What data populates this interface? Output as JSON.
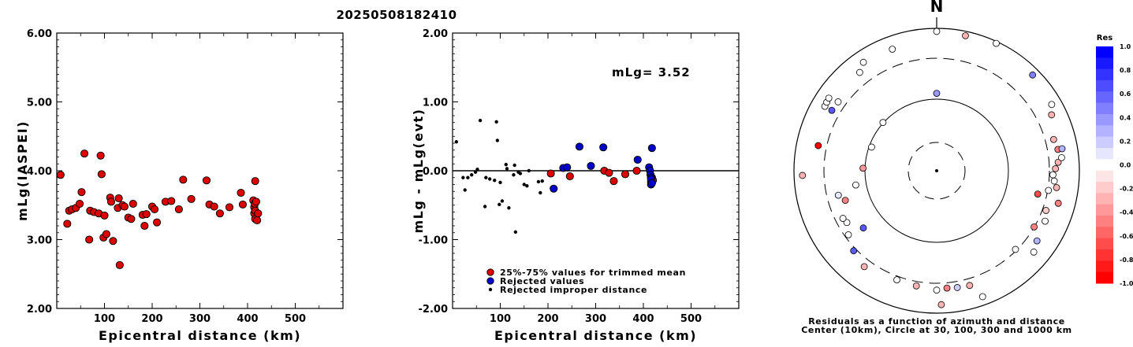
{
  "title": "20250508182410",
  "chart_data": [
    {
      "type": "scatter",
      "ylabel": "mLg(IASPEI)",
      "xlabel": "Epicentral distance (km)",
      "xlim": [
        0,
        600
      ],
      "ylim": [
        2.0,
        6.0
      ],
      "xticks": [
        "100",
        "200",
        "300",
        "400",
        "500"
      ],
      "yticks": [
        "2.00",
        "3.00",
        "4.00",
        "5.00",
        "6.00"
      ],
      "series": [
        {
          "color": "#dd0000",
          "points": [
            [
              8,
              3.94
            ],
            [
              22,
              3.23
            ],
            [
              26,
              3.42
            ],
            [
              32,
              3.44
            ],
            [
              40,
              3.46
            ],
            [
              48,
              3.52
            ],
            [
              52,
              3.69
            ],
            [
              58,
              4.25
            ],
            [
              68,
              3.0
            ],
            [
              70,
              3.42
            ],
            [
              78,
              3.4
            ],
            [
              88,
              3.38
            ],
            [
              92,
              4.22
            ],
            [
              94,
              3.95
            ],
            [
              98,
              3.03
            ],
            [
              100,
              3.35
            ],
            [
              104,
              3.08
            ],
            [
              112,
              3.61
            ],
            [
              114,
              3.55
            ],
            [
              118,
              2.98
            ],
            [
              128,
              3.46
            ],
            [
              130,
              3.6
            ],
            [
              132,
              2.63
            ],
            [
              138,
              3.5
            ],
            [
              142,
              3.48
            ],
            [
              150,
              3.32
            ],
            [
              156,
              3.3
            ],
            [
              160,
              3.52
            ],
            [
              180,
              3.36
            ],
            [
              184,
              3.2
            ],
            [
              188,
              3.37
            ],
            [
              200,
              3.48
            ],
            [
              205,
              3.44
            ],
            [
              210,
              3.25
            ],
            [
              228,
              3.55
            ],
            [
              240,
              3.56
            ],
            [
              256,
              3.44
            ],
            [
              265,
              3.87
            ],
            [
              282,
              3.59
            ],
            [
              314,
              3.86
            ],
            [
              320,
              3.51
            ],
            [
              330,
              3.48
            ],
            [
              342,
              3.38
            ],
            [
              362,
              3.47
            ],
            [
              386,
              3.68
            ],
            [
              390,
              3.51
            ],
            [
              412,
              3.57
            ],
            [
              414,
              3.47
            ],
            [
              414,
              3.38
            ],
            [
              415,
              3.52
            ],
            [
              416,
              3.3
            ],
            [
              416,
              3.85
            ],
            [
              416,
              3.42
            ],
            [
              418,
              3.55
            ],
            [
              420,
              3.28
            ],
            [
              422,
              3.38
            ]
          ]
        }
      ]
    },
    {
      "type": "scatter",
      "ylabel": "mLg - mLg(evt)",
      "xlabel": "Epicentral distance (km)",
      "xlim": [
        0,
        600
      ],
      "ylim": [
        -2.0,
        2.0
      ],
      "xticks": [
        "100",
        "200",
        "300",
        "400",
        "500"
      ],
      "yticks": [
        "-2.00",
        "-1.00",
        "0.00",
        "1.00",
        "2.00"
      ],
      "annotation": "mLg= 3.52",
      "reference_line": 0.0,
      "legend": [
        {
          "label": "25%-75% values for trimmed mean",
          "color": "#dd0000"
        },
        {
          "label": "Rejected values",
          "color": "#0000cc"
        },
        {
          "label": "Rejected improper distance",
          "color": "#000000"
        }
      ],
      "series": [
        {
          "name": "25%-75% values for trimmed mean",
          "color": "#dd0000",
          "points": [
            [
              206,
              -0.04
            ],
            [
              246,
              -0.08
            ],
            [
              318,
              0.0
            ],
            [
              328,
              -0.03
            ],
            [
              338,
              -0.15
            ],
            [
              362,
              -0.05
            ],
            [
              386,
              0.0
            ],
            [
              418,
              -0.1
            ],
            [
              420,
              -0.14
            ],
            [
              416,
              -0.16
            ]
          ]
        },
        {
          "name": "Rejected values",
          "color": "#0000cc",
          "points": [
            [
              212,
              -0.26
            ],
            [
              232,
              0.04
            ],
            [
              240,
              0.05
            ],
            [
              266,
              0.35
            ],
            [
              290,
              0.07
            ],
            [
              316,
              0.34
            ],
            [
              388,
              0.16
            ],
            [
              412,
              0.05
            ],
            [
              414,
              0.0
            ],
            [
              415,
              -0.06
            ],
            [
              416,
              -0.1
            ],
            [
              416,
              -0.12
            ],
            [
              416,
              -0.2
            ],
            [
              418,
              -0.18
            ],
            [
              418,
              0.33
            ]
          ]
        },
        {
          "name": "Rejected improper distance",
          "color": "#000000",
          "points": [
            [
              8,
              0.42
            ],
            [
              22,
              -0.1
            ],
            [
              26,
              -0.28
            ],
            [
              32,
              -0.1
            ],
            [
              40,
              -0.06
            ],
            [
              48,
              -0.02
            ],
            [
              52,
              0.02
            ],
            [
              58,
              0.73
            ],
            [
              68,
              -0.52
            ],
            [
              70,
              -0.1
            ],
            [
              78,
              -0.12
            ],
            [
              88,
              -0.14
            ],
            [
              92,
              0.71
            ],
            [
              94,
              0.44
            ],
            [
              98,
              -0.49
            ],
            [
              100,
              -0.17
            ],
            [
              104,
              -0.44
            ],
            [
              112,
              0.09
            ],
            [
              114,
              0.03
            ],
            [
              118,
              -0.54
            ],
            [
              128,
              -0.06
            ],
            [
              130,
              0.08
            ],
            [
              132,
              -0.89
            ],
            [
              138,
              -0.02
            ],
            [
              142,
              -0.04
            ],
            [
              150,
              -0.2
            ],
            [
              156,
              -0.22
            ],
            [
              160,
              0.0
            ],
            [
              180,
              -0.16
            ],
            [
              184,
              -0.32
            ],
            [
              188,
              -0.15
            ]
          ]
        }
      ]
    },
    {
      "type": "scatter",
      "kind": "polar-residuals",
      "north_label": "N",
      "caption_line1": "Residuals as a function of azimuth and distance",
      "caption_line2": "Center (10km), Circle at 30, 100, 300 and 1000 km",
      "rings_km": [
        30,
        100,
        300,
        1000
      ],
      "colorbar_title": "Res",
      "colorbar_labels": [
        "1.0",
        "0.8",
        "0.6",
        "0.4",
        "0.2",
        "0.0",
        "-0.2",
        "-0.4",
        "-0.6",
        "-0.8",
        "-1.0"
      ],
      "points_az_dist_res": [
        [
          -60,
          910,
          0.0
        ],
        [
          -58,
          930,
          0.0
        ],
        [
          -56,
          950,
          0.0
        ],
        [
          -34,
          990,
          0.0
        ],
        [
          -60,
          640,
          0.65
        ],
        [
          -92,
          1080,
          -0.3
        ],
        [
          -78,
          640,
          -1.0
        ],
        [
          -20,
          930,
          0.0
        ],
        [
          -38,
          760,
          0.0
        ],
        [
          -55,
          620,
          0.0
        ],
        [
          -48,
          120,
          0.0
        ],
        [
          -70,
          110,
          0.0
        ],
        [
          -88,
          125,
          -0.4
        ],
        [
          -100,
          160,
          0.0
        ],
        [
          -128,
          220,
          0.65
        ],
        [
          -108,
          240,
          -0.5
        ],
        [
          -104,
          280,
          0.1
        ],
        [
          -120,
          300,
          0.0
        ],
        [
          -117,
          320,
          0.0
        ],
        [
          -134,
          500,
          0.65
        ],
        [
          -126,
          380,
          0.0
        ],
        [
          -143,
          620,
          -0.3
        ],
        [
          -160,
          520,
          0.0
        ],
        [
          -170,
          540,
          -0.3
        ],
        [
          -180,
          600,
          0.0
        ],
        [
          175,
          560,
          -0.5
        ],
        [
          170,
          580,
          0.2
        ],
        [
          164,
          600,
          -0.3
        ],
        [
          178,
          1080,
          -0.3
        ],
        [
          160,
          1080,
          0.0
        ],
        [
          135,
          420,
          0.0
        ],
        [
          120,
          440,
          -0.5
        ],
        [
          110,
          520,
          -0.2
        ],
        [
          103,
          300,
          -0.7
        ],
        [
          115,
          600,
          0.0
        ],
        [
          98,
          640,
          -0.3
        ],
        [
          100,
          460,
          0.0
        ],
        [
          92,
          520,
          0.0
        ],
        [
          95,
          560,
          0.0
        ],
        [
          89,
          580,
          -0.3
        ],
        [
          86,
          660,
          -0.3
        ],
        [
          80,
          700,
          -0.5
        ],
        [
          75,
          640,
          -0.3
        ],
        [
          80,
          840,
          0.3
        ],
        [
          84,
          780,
          0.0
        ],
        [
          64,
          860,
          -0.3
        ],
        [
          125,
          680,
          0.3
        ],
        [
          130,
          820,
          0.0
        ],
        [
          60,
          1040,
          0.0
        ],
        [
          45,
          1120,
          0.5
        ],
        [
          25,
          1280,
          0.0
        ],
        [
          12,
          1200,
          -0.3
        ],
        [
          0,
          1240,
          0.0
        ],
        [
          105,
          790,
          -0.5
        ],
        [
          0,
          140,
          0.4
        ]
      ]
    }
  ]
}
